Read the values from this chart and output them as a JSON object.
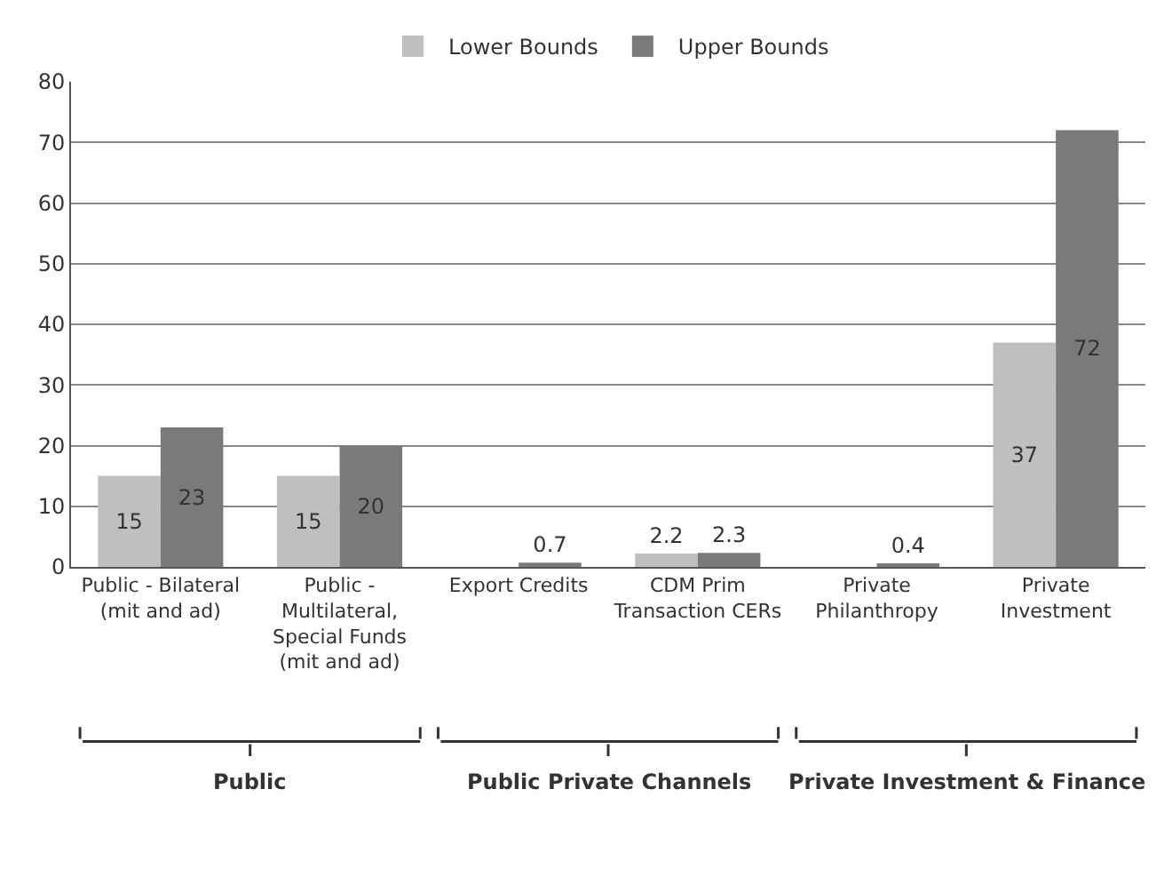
{
  "chart_data": {
    "type": "bar",
    "categories": [
      "Public - Bilateral\n(mit and ad)",
      "Public -\nMultilateral,\nSpecial Funds\n(mit and ad)",
      "Export Credits",
      "CDM Prim\nTransaction CERs",
      "Private\nPhilanthropy",
      "Private\nInvestment"
    ],
    "series": [
      {
        "name": "Lower Bounds",
        "color": "#bfbfbf",
        "values": [
          15,
          15,
          null,
          2.2,
          null,
          37
        ]
      },
      {
        "name": "Upper Bounds",
        "color": "#7a7a7a",
        "values": [
          23,
          20,
          0.7,
          2.3,
          0.4,
          72
        ]
      }
    ],
    "data_labels": true,
    "ylim": [
      0,
      80
    ],
    "yticks": [
      0,
      10,
      20,
      30,
      40,
      50,
      60,
      70,
      80
    ],
    "grid": "y",
    "legend": "top",
    "annotations": [
      "Public",
      "Public Private Channels",
      "Private Investment & Finance"
    ]
  }
}
